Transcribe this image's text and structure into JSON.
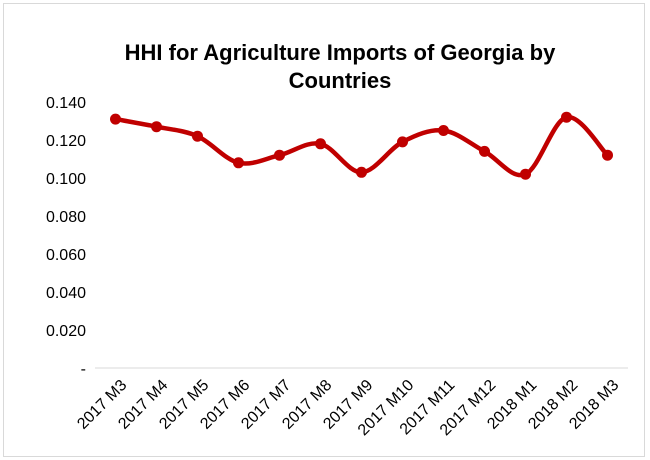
{
  "chart_data": {
    "type": "line",
    "title_lines": [
      "HHI for Agriculture Imports of Georgia by",
      "Countries"
    ],
    "categories": [
      "2017 M3",
      "2017 M4",
      "2017 M5",
      "2017 M6",
      "2017 M7",
      "2017 M8",
      "2017 M9",
      "2017 M10",
      "2017 M11",
      "2017 M12",
      "2018 M1",
      "2018 M2",
      "2018 M3"
    ],
    "series": [
      {
        "values": [
          0.131,
          0.127,
          0.122,
          0.108,
          0.112,
          0.118,
          0.103,
          0.119,
          0.125,
          0.114,
          0.102,
          0.132,
          0.112
        ]
      }
    ],
    "yticks": [
      "-",
      "0.020",
      "0.040",
      "0.060",
      "0.080",
      "0.100",
      "0.120",
      "0.140"
    ],
    "ylim": [
      0,
      0.14
    ],
    "grid": false,
    "legend": "none",
    "line_color": "#c00000"
  }
}
